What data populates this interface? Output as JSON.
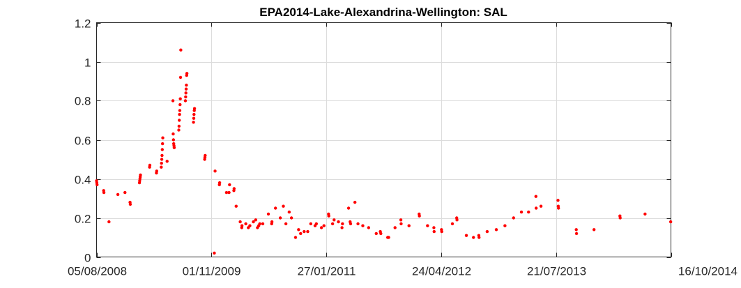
{
  "chart_data": {
    "type": "scatter",
    "title": "EPA2014-Lake-Alexandrina-Wellington: SAL",
    "xlabel": "",
    "ylabel": "",
    "x_axis_type": "date",
    "xlim": [
      "2008-08-05",
      "2014-10-16"
    ],
    "ylim": [
      0,
      1.2
    ],
    "x_ticks": [
      "2008-08-05",
      "2009-11-01",
      "2011-01-27",
      "2012-04-24",
      "2013-07-21",
      "2014-10-16"
    ],
    "x_tick_labels": [
      "05/08/2008",
      "01/11/2009",
      "27/01/2011",
      "24/04/2012",
      "21/07/2013",
      "16/10/2014"
    ],
    "y_ticks": [
      0,
      0.2,
      0.4,
      0.6,
      0.8,
      1,
      1.2
    ],
    "y_tick_labels": [
      "0",
      "0.2",
      "0.4",
      "0.6",
      "0.8",
      "1",
      "1.2"
    ],
    "grid": true,
    "marker_color": "#ff0000",
    "series": [
      {
        "points": [
          [
            "2008-08-05",
            0.39
          ],
          [
            "2008-08-06",
            0.38
          ],
          [
            "2008-08-07",
            0.37
          ],
          [
            "2008-09-02",
            0.34
          ],
          [
            "2008-09-03",
            0.33
          ],
          [
            "2008-09-23",
            0.18
          ],
          [
            "2008-10-28",
            0.32
          ],
          [
            "2008-11-25",
            0.33
          ],
          [
            "2008-12-15",
            0.28
          ],
          [
            "2008-12-16",
            0.27
          ],
          [
            "2009-01-21",
            0.38
          ],
          [
            "2009-01-22",
            0.39
          ],
          [
            "2009-01-23",
            0.4
          ],
          [
            "2009-01-24",
            0.41
          ],
          [
            "2009-01-25",
            0.42
          ],
          [
            "2009-03-02",
            0.46
          ],
          [
            "2009-03-03",
            0.47
          ],
          [
            "2009-03-29",
            0.43
          ],
          [
            "2009-03-30",
            0.44
          ],
          [
            "2009-04-17",
            0.46
          ],
          [
            "2009-04-18",
            0.48
          ],
          [
            "2009-04-19",
            0.5
          ],
          [
            "2009-04-20",
            0.52
          ],
          [
            "2009-04-21",
            0.55
          ],
          [
            "2009-04-22",
            0.58
          ],
          [
            "2009-04-23",
            0.61
          ],
          [
            "2009-05-10",
            0.49
          ],
          [
            "2009-06-02",
            0.8
          ],
          [
            "2009-06-03",
            0.63
          ],
          [
            "2009-06-04",
            0.6
          ],
          [
            "2009-06-05",
            0.58
          ],
          [
            "2009-06-06",
            0.57
          ],
          [
            "2009-06-07",
            0.56
          ],
          [
            "2009-06-25",
            0.65
          ],
          [
            "2009-06-26",
            0.67
          ],
          [
            "2009-06-27",
            0.7
          ],
          [
            "2009-06-28",
            0.73
          ],
          [
            "2009-06-29",
            0.75
          ],
          [
            "2009-06-30",
            0.78
          ],
          [
            "2009-07-01",
            0.81
          ],
          [
            "2009-07-02",
            0.92
          ],
          [
            "2009-07-03",
            1.06
          ],
          [
            "2009-07-21",
            0.8
          ],
          [
            "2009-07-22",
            0.82
          ],
          [
            "2009-07-23",
            0.84
          ],
          [
            "2009-07-24",
            0.86
          ],
          [
            "2009-07-25",
            0.88
          ],
          [
            "2009-07-26",
            0.93
          ],
          [
            "2009-07-27",
            0.94
          ],
          [
            "2009-08-22",
            0.69
          ],
          [
            "2009-08-23",
            0.71
          ],
          [
            "2009-08-24",
            0.73
          ],
          [
            "2009-08-25",
            0.75
          ],
          [
            "2009-08-26",
            0.76
          ],
          [
            "2009-10-05",
            0.5
          ],
          [
            "2009-10-06",
            0.51
          ],
          [
            "2009-10-07",
            0.52
          ],
          [
            "2009-11-12",
            0.02
          ],
          [
            "2009-11-15",
            0.44
          ],
          [
            "2009-12-02",
            0.37
          ],
          [
            "2009-12-03",
            0.38
          ],
          [
            "2009-12-30",
            0.33
          ],
          [
            "2010-01-09",
            0.33
          ],
          [
            "2010-01-11",
            0.37
          ],
          [
            "2010-01-28",
            0.34
          ],
          [
            "2010-01-29",
            0.35
          ],
          [
            "2010-02-06",
            0.26
          ],
          [
            "2010-02-22",
            0.18
          ],
          [
            "2010-02-28",
            0.15
          ],
          [
            "2010-03-01",
            0.16
          ],
          [
            "2010-03-16",
            0.17
          ],
          [
            "2010-03-26",
            0.15
          ],
          [
            "2010-04-01",
            0.16
          ],
          [
            "2010-04-15",
            0.18
          ],
          [
            "2010-04-24",
            0.19
          ],
          [
            "2010-05-01",
            0.15
          ],
          [
            "2010-05-06",
            0.16
          ],
          [
            "2010-05-10",
            0.17
          ],
          [
            "2010-05-22",
            0.17
          ],
          [
            "2010-06-13",
            0.22
          ],
          [
            "2010-06-26",
            0.17
          ],
          [
            "2010-06-27",
            0.18
          ],
          [
            "2010-07-11",
            0.25
          ],
          [
            "2010-07-30",
            0.2
          ],
          [
            "2010-08-11",
            0.26
          ],
          [
            "2010-08-21",
            0.17
          ],
          [
            "2010-09-03",
            0.23
          ],
          [
            "2010-09-12",
            0.2
          ],
          [
            "2010-09-28",
            0.1
          ],
          [
            "2010-10-10",
            0.14
          ],
          [
            "2010-10-18",
            0.12
          ],
          [
            "2010-11-01",
            0.13
          ],
          [
            "2010-11-15",
            0.13
          ],
          [
            "2010-11-27",
            0.17
          ],
          [
            "2010-12-14",
            0.16
          ],
          [
            "2010-12-19",
            0.17
          ],
          [
            "2011-01-08",
            0.15
          ],
          [
            "2011-01-18",
            0.16
          ],
          [
            "2011-02-05",
            0.22
          ],
          [
            "2011-02-06",
            0.21
          ],
          [
            "2011-02-21",
            0.17
          ],
          [
            "2011-02-27",
            0.19
          ],
          [
            "2011-03-16",
            0.18
          ],
          [
            "2011-03-30",
            0.15
          ],
          [
            "2011-04-01",
            0.17
          ],
          [
            "2011-04-25",
            0.25
          ],
          [
            "2011-05-01",
            0.18
          ],
          [
            "2011-05-03",
            0.17
          ],
          [
            "2011-05-20",
            0.28
          ],
          [
            "2011-06-01",
            0.17
          ],
          [
            "2011-06-20",
            0.16
          ],
          [
            "2011-07-13",
            0.15
          ],
          [
            "2011-08-12",
            0.12
          ],
          [
            "2011-08-28",
            0.13
          ],
          [
            "2011-08-30",
            0.12
          ],
          [
            "2011-09-26",
            0.1
          ],
          [
            "2011-09-30",
            0.1
          ],
          [
            "2011-10-25",
            0.15
          ],
          [
            "2011-11-17",
            0.19
          ],
          [
            "2011-11-18",
            0.17
          ],
          [
            "2011-12-19",
            0.16
          ],
          [
            "2012-01-28",
            0.22
          ],
          [
            "2012-01-29",
            0.21
          ],
          [
            "2012-03-01",
            0.16
          ],
          [
            "2012-03-26",
            0.15
          ],
          [
            "2012-03-27",
            0.13
          ],
          [
            "2012-04-25",
            0.14
          ],
          [
            "2012-04-26",
            0.13
          ],
          [
            "2012-06-07",
            0.17
          ],
          [
            "2012-06-24",
            0.2
          ],
          [
            "2012-06-25",
            0.19
          ],
          [
            "2012-08-01",
            0.11
          ],
          [
            "2012-08-29",
            0.1
          ],
          [
            "2012-09-19",
            0.11
          ],
          [
            "2012-09-20",
            0.1
          ],
          [
            "2012-10-22",
            0.13
          ],
          [
            "2012-11-27",
            0.14
          ],
          [
            "2012-12-31",
            0.16
          ],
          [
            "2013-02-03",
            0.2
          ],
          [
            "2013-03-06",
            0.23
          ],
          [
            "2013-04-03",
            0.23
          ],
          [
            "2013-05-02",
            0.31
          ],
          [
            "2013-05-03",
            0.25
          ],
          [
            "2013-05-22",
            0.26
          ],
          [
            "2013-07-28",
            0.29
          ],
          [
            "2013-07-29",
            0.26
          ],
          [
            "2013-07-30",
            0.25
          ],
          [
            "2013-10-08",
            0.14
          ],
          [
            "2013-10-09",
            0.12
          ],
          [
            "2013-12-17",
            0.14
          ],
          [
            "2014-03-29",
            0.21
          ],
          [
            "2014-03-30",
            0.2
          ],
          [
            "2014-07-06",
            0.22
          ],
          [
            "2014-10-15",
            0.18
          ]
        ]
      }
    ]
  }
}
